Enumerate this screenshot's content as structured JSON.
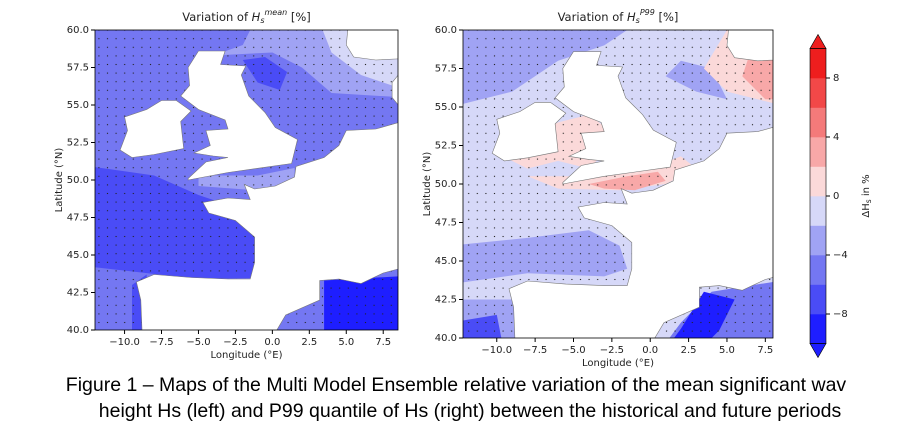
{
  "maps": [
    {
      "title": {
        "prefix": "Variation of ",
        "var": "H",
        "sub": "s",
        "sup": "mean",
        "suffix": " [%]"
      },
      "xlabel": "Longitude (°E)",
      "ylabel": "Latitude (°N)",
      "xlim": [
        -12,
        8.5
      ],
      "ylim": [
        40,
        60
      ],
      "xticks": [
        {
          "value": -10,
          "label": "−10.0"
        },
        {
          "value": -7.5,
          "label": "−7.5"
        },
        {
          "value": -5,
          "label": "−5.0"
        },
        {
          "value": -2.5,
          "label": "−2.5"
        },
        {
          "value": 0,
          "label": "0.0"
        },
        {
          "value": 2.5,
          "label": "2.5"
        },
        {
          "value": 5,
          "label": "5.0"
        },
        {
          "value": 7.5,
          "label": "7.5"
        }
      ],
      "yticks": [
        {
          "value": 40,
          "label": "40.0"
        },
        {
          "value": 42.5,
          "label": "42.5"
        },
        {
          "value": 45,
          "label": "45.0"
        },
        {
          "value": 47.5,
          "label": "47.5"
        },
        {
          "value": 50,
          "label": "50.0"
        },
        {
          "value": 52.5,
          "label": "52.5"
        },
        {
          "value": 55,
          "label": "55.0"
        },
        {
          "value": 57.5,
          "label": "57.5"
        },
        {
          "value": 60,
          "label": "60.0"
        }
      ]
    },
    {
      "title": {
        "prefix": "Variation of ",
        "var": "H",
        "sub": "s",
        "sup": "P99",
        "suffix": " [%]"
      },
      "xlabel": "Longitude (°E)",
      "ylabel": "Latitude (°N)",
      "xlim": [
        -12.2,
        8
      ],
      "ylim": [
        40,
        60
      ],
      "xticks": [
        {
          "value": -10,
          "label": "−10.0"
        },
        {
          "value": -7.5,
          "label": "−7.5"
        },
        {
          "value": -5,
          "label": "−5.0"
        },
        {
          "value": -2.5,
          "label": "−2.5"
        },
        {
          "value": 0,
          "label": "0.0"
        },
        {
          "value": 2.5,
          "label": "2.5"
        },
        {
          "value": 5,
          "label": "5.0"
        },
        {
          "value": 7.5,
          "label": "7.5"
        }
      ],
      "yticks": [
        {
          "value": 40,
          "label": "40.0"
        },
        {
          "value": 42.5,
          "label": "42.5"
        },
        {
          "value": 45,
          "label": "45.0"
        },
        {
          "value": 47.5,
          "label": "47.5"
        },
        {
          "value": 50,
          "label": "50.0"
        },
        {
          "value": 52.5,
          "label": "52.5"
        },
        {
          "value": 55,
          "label": "55.0"
        },
        {
          "value": 57.5,
          "label": "57.5"
        },
        {
          "value": 60,
          "label": "60.0"
        }
      ]
    }
  ],
  "colorbar": {
    "label": {
      "prefix": "ΔH",
      "sub": "s",
      "suffix": " in %"
    },
    "clim": [
      -10,
      10
    ],
    "colors": [
      "#1e1eff",
      "#4a4cf6",
      "#7477f2",
      "#a0a3f4",
      "#d6d8f8",
      "#fbd9d9",
      "#f8a8a8",
      "#f47a7a",
      "#f24848",
      "#ee1e1e"
    ],
    "ticks": [
      {
        "value": 8,
        "label": "8"
      },
      {
        "value": 4,
        "label": "4"
      },
      {
        "value": 0,
        "label": "0"
      },
      {
        "value": -4,
        "label": "−4"
      },
      {
        "value": -8,
        "label": "−8"
      }
    ]
  },
  "caption": [
    "Figure 1 – Maps of the Multi Model Ensemble relative variation of the mean significant wav",
    "height Hs (left) and P99 quantile of Hs (right) between the historical and future periods"
  ]
}
